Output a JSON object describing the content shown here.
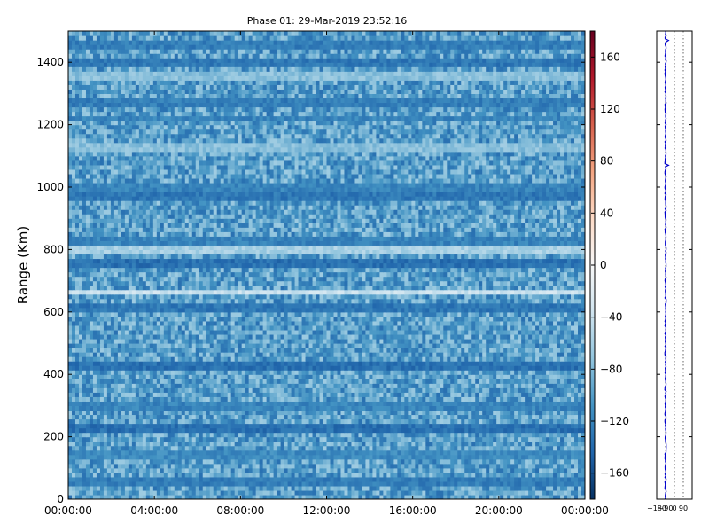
{
  "chart_data": [
    {
      "type": "heatmap",
      "title": "Phase 01: 29-Mar-2019 23:52:16",
      "xlabel": "",
      "ylabel": "Range (Km)",
      "xlim": [
        "00:00:00",
        "24:00:00"
      ],
      "xticks": [
        "00:00:00",
        "04:00:00",
        "08:00:00",
        "12:00:00",
        "16:00:00",
        "20:00:00",
        "00:00:00"
      ],
      "ylim": [
        0,
        1500
      ],
      "yticks": [
        0,
        200,
        400,
        600,
        800,
        1000,
        1200,
        1400
      ],
      "colorbar": {
        "range": [
          -180,
          180
        ],
        "ticks": [
          -160,
          -120,
          -80,
          -40,
          0,
          40,
          80,
          120,
          160
        ],
        "tick_labels": [
          "−160",
          "−120",
          "−80",
          "−40",
          "0",
          "40",
          "80",
          "120",
          "160"
        ],
        "colormap": "RdBu_r"
      },
      "typical_value": -100,
      "value_spread": [
        -140,
        -60
      ],
      "bands": [
        {
          "range": 60,
          "value": -125
        },
        {
          "range": 140,
          "value": -115
        },
        {
          "range": 225,
          "value": -135
        },
        {
          "range": 300,
          "value": -120
        },
        {
          "range": 430,
          "value": -135
        },
        {
          "range": 610,
          "value": -130
        },
        {
          "range": 665,
          "value": -40
        },
        {
          "range": 760,
          "value": -135
        },
        {
          "range": 795,
          "value": -60
        },
        {
          "range": 830,
          "value": -120
        },
        {
          "range": 970,
          "value": -130
        },
        {
          "range": 1005,
          "value": -120
        },
        {
          "range": 1130,
          "value": -75
        },
        {
          "range": 1220,
          "value": -120
        },
        {
          "range": 1270,
          "value": -125
        },
        {
          "range": 1360,
          "value": -75
        },
        {
          "range": 1400,
          "value": -130
        },
        {
          "range": 1460,
          "value": -125
        }
      ]
    },
    {
      "type": "line",
      "title": "",
      "xlabel": "",
      "ylabel": "",
      "xlim": [
        -180,
        180
      ],
      "xticks": [
        -180,
        -90,
        0,
        90
      ],
      "xtick_labels": [
        "−180",
        "−90",
        "0",
        "90"
      ],
      "ylim": [
        0,
        1500
      ],
      "grid": true,
      "series_color": "#0000cc",
      "profile_mean": -90,
      "spikes": [
        {
          "range": 1470,
          "value": -60
        },
        {
          "range": 1070,
          "value": -60
        }
      ]
    }
  ]
}
